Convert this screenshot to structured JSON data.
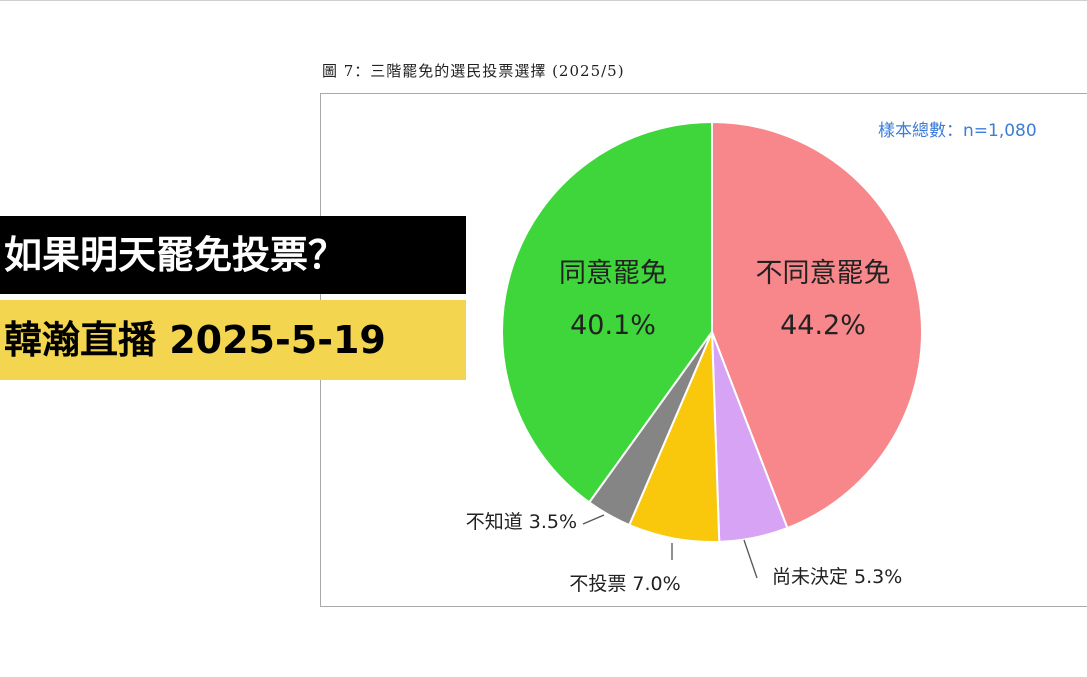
{
  "banner": {
    "line1": "如果明天罷免投票？",
    "line2": "韓瀚直播 2025-5-19"
  },
  "figure": {
    "caption": "圖 7：三階罷免的選民投票選擇 (2025/5)",
    "sample_note": "樣本總數：n=1,080"
  },
  "chart_data": {
    "type": "pie",
    "title": "",
    "slices": [
      {
        "label": "不同意罷免",
        "value": 44.2,
        "value_label": "44.2%",
        "color": "#f7878a"
      },
      {
        "label": "尚未決定",
        "value": 5.3,
        "value_label": "尚未決定 5.3%",
        "color": "#d7a3f5"
      },
      {
        "label": "不投票",
        "value": 7.0,
        "value_label": "不投票 7.0%",
        "color": "#f9c80d"
      },
      {
        "label": "不知道",
        "value": 3.5,
        "value_label": "不知道 3.5%",
        "color": "#858585"
      },
      {
        "label": "同意罷免",
        "value": 40.1,
        "value_label": "40.1%",
        "color": "#3ed63b"
      }
    ],
    "start_angle": "12 o'clock",
    "direction": "clockwise",
    "legend": "none (labels on slices)"
  }
}
